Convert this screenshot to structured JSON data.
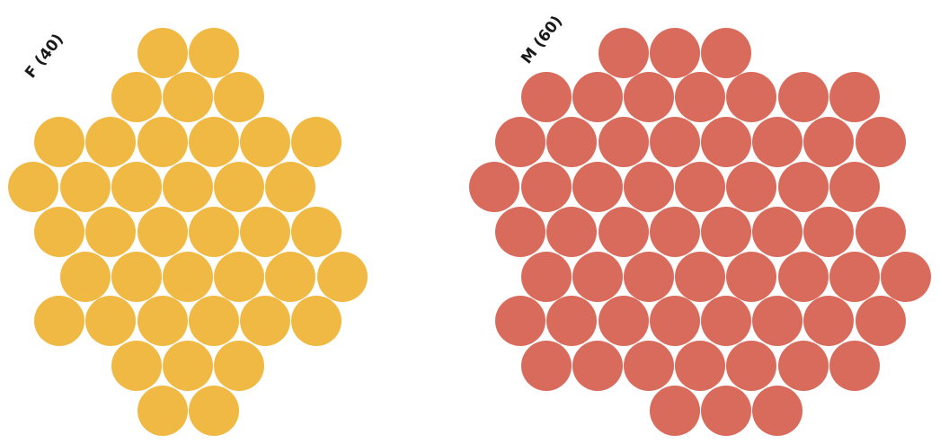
{
  "chart_data": {
    "type": "beeswarm",
    "groups": [
      {
        "label": "F (40)",
        "name": "F",
        "count": 40,
        "color": "#F0B944"
      },
      {
        "label": "M (60)",
        "name": "M",
        "count": 60,
        "color": "#D96B5C"
      }
    ]
  }
}
